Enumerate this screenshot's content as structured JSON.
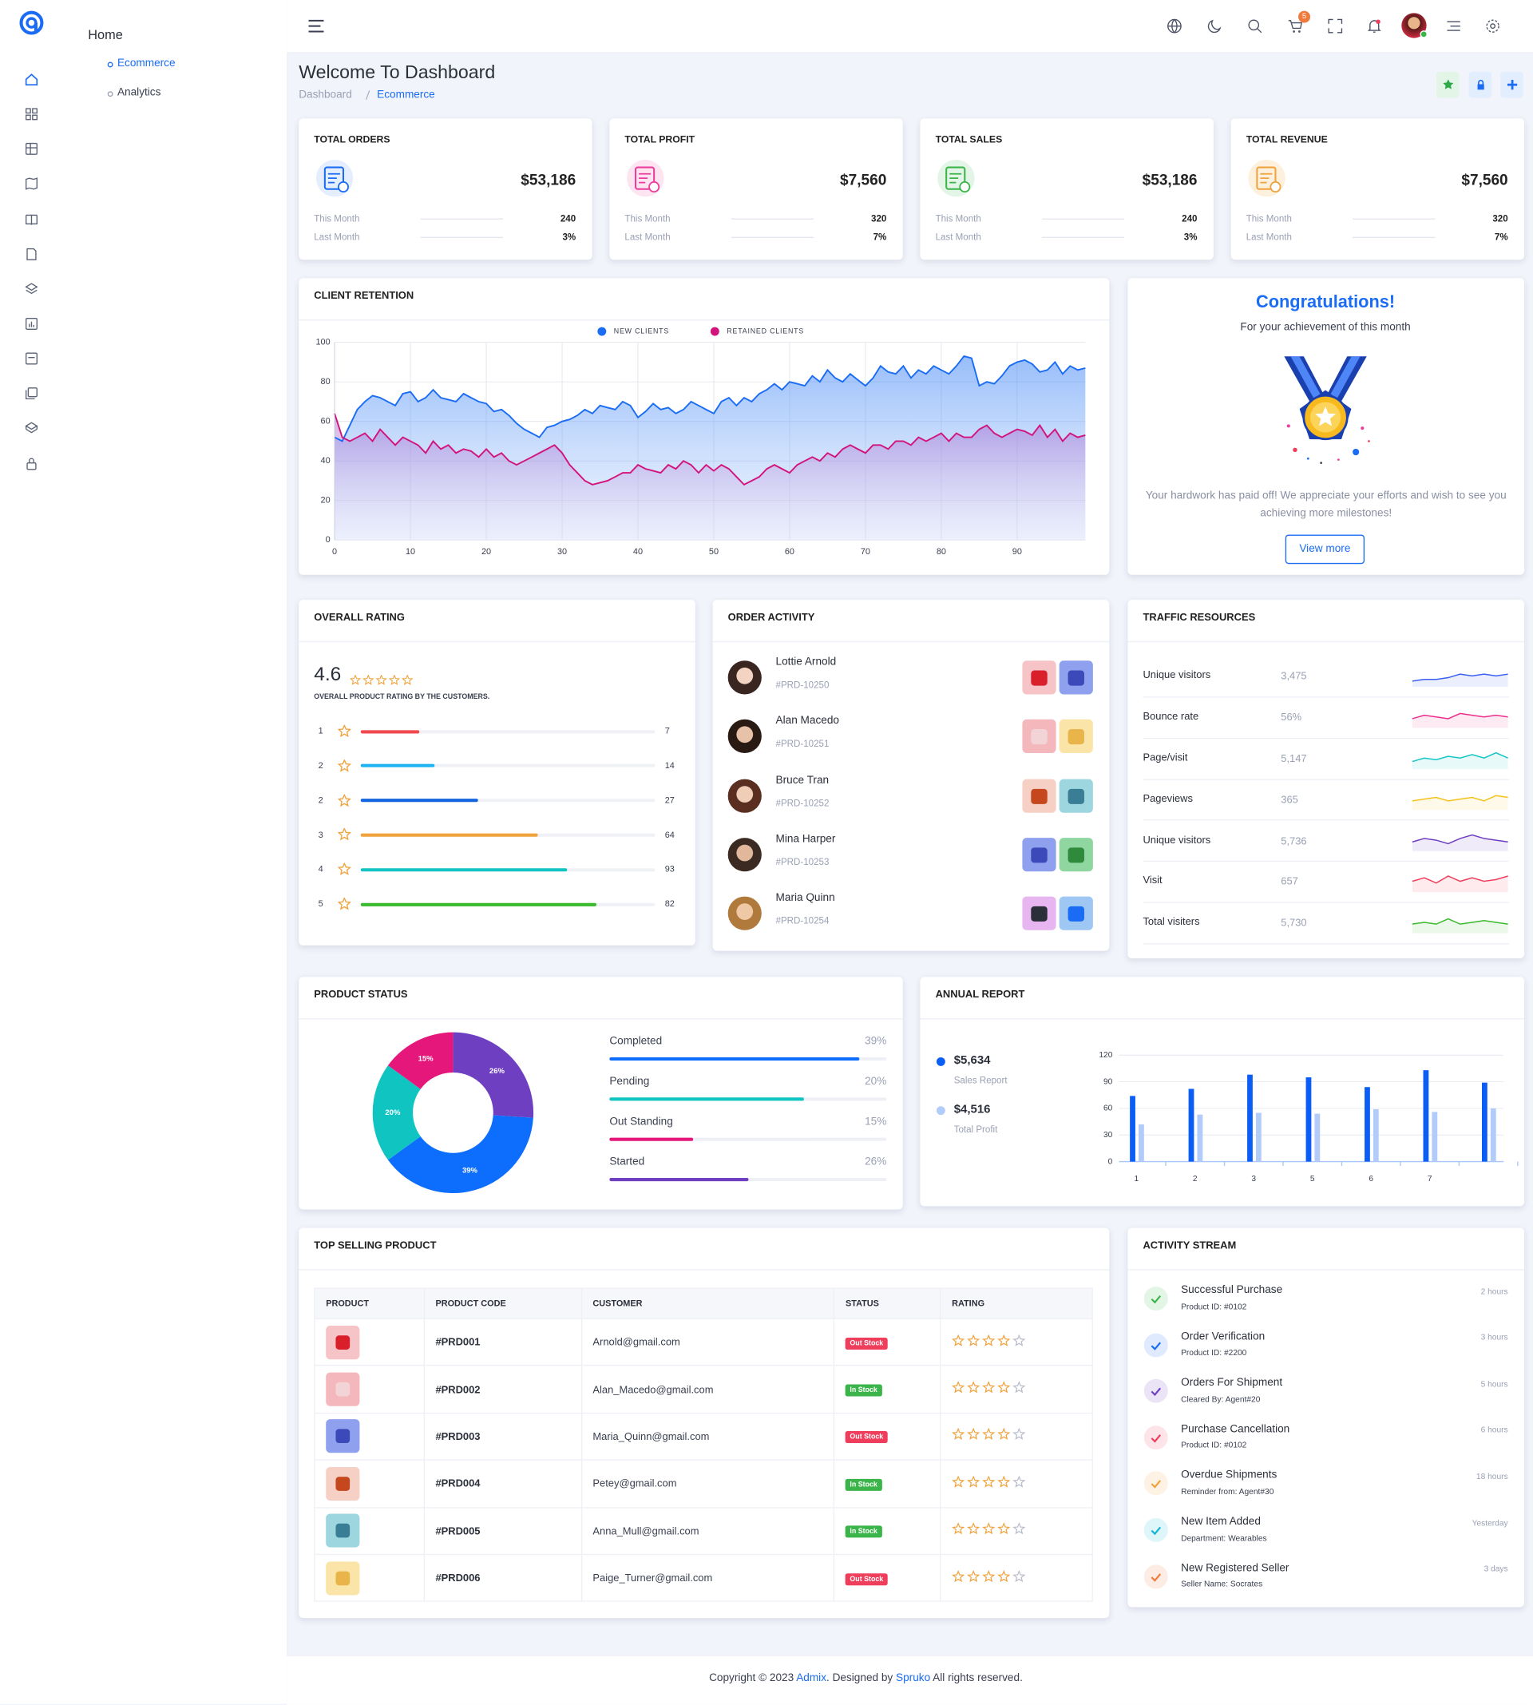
{
  "sidebar": {
    "section": "Home",
    "items": [
      "Ecommerce",
      "Analytics"
    ]
  },
  "header": {
    "cart_badge": 5
  },
  "page": {
    "title": "Welcome To Dashboard",
    "breadcrumb": [
      "Dashboard",
      "Ecommerce"
    ]
  },
  "stats": [
    {
      "title": "TOTAL ORDERS",
      "value": "$53,186",
      "rows": [
        {
          "label": "This Month",
          "value": "240"
        },
        {
          "label": "Last Month",
          "value": "3%"
        }
      ]
    },
    {
      "title": "TOTAL PROFIT",
      "value": "$7,560",
      "rows": [
        {
          "label": "This Month",
          "value": "320"
        },
        {
          "label": "Last Month",
          "value": "7%"
        }
      ]
    },
    {
      "title": "TOTAL SALES",
      "value": "$53,186",
      "rows": [
        {
          "label": "This Month",
          "value": "240"
        },
        {
          "label": "Last Month",
          "value": "3%"
        }
      ]
    },
    {
      "title": "TOTAL REVENUE",
      "value": "$7,560",
      "rows": [
        {
          "label": "This Month",
          "value": "320"
        },
        {
          "label": "Last Month",
          "value": "7%"
        }
      ]
    }
  ],
  "congrats": {
    "title": "Congratulations!",
    "subtitle": "For your achievement of this month",
    "text": "Your hardwork has paid off! We appreciate your efforts and wish to see you achieving more milestones!",
    "button": "View more"
  },
  "rating": {
    "title": "OVERALL RATING",
    "score": "4.6",
    "caption": "OVERALL PRODUCT RATING BY THE CUSTOMERS.",
    "rows": [
      {
        "label": "1",
        "count": 7,
        "progress": 20,
        "color": "#f0484c"
      },
      {
        "label": "2",
        "count": 14,
        "progress": 25,
        "color": "#1bb4f0"
      },
      {
        "label": "2",
        "count": 27,
        "progress": 40,
        "color": "#1565e0"
      },
      {
        "label": "3",
        "count": 64,
        "progress": 60,
        "color": "#f0a23c"
      },
      {
        "label": "4",
        "count": 93,
        "progress": 70,
        "color": "#12c3c3"
      },
      {
        "label": "5",
        "count": 82,
        "progress": 80,
        "color": "#3bba2d"
      }
    ]
  },
  "orders": {
    "title": "ORDER ACTIVITY",
    "items": [
      {
        "name": "Lottie Arnold",
        "code": "#PRD-10250"
      },
      {
        "name": "Alan Macedo",
        "code": "#PRD-10251"
      },
      {
        "name": "Bruce Tran",
        "code": "#PRD-10252"
      },
      {
        "name": "Mina Harper",
        "code": "#PRD-10253"
      },
      {
        "name": "Maria Quinn",
        "code": "#PRD-10254"
      }
    ]
  },
  "traffic": {
    "title": "TRAFFIC RESOURCES",
    "rows": [
      {
        "label": "Unique visitors",
        "value": "3,475",
        "color": "#3a5ff0",
        "spark": [
          2,
          3,
          3,
          4,
          6,
          5,
          6,
          5,
          6
        ]
      },
      {
        "label": "Bounce rate",
        "value": "56%",
        "color": "#ec2e8c",
        "spark": [
          4,
          6,
          5,
          4,
          7,
          6,
          5,
          6,
          5
        ]
      },
      {
        "label": "Page/visit",
        "value": "5,147",
        "color": "#12c6c6",
        "spark": [
          3,
          5,
          4,
          6,
          5,
          7,
          5,
          8,
          5
        ]
      },
      {
        "label": "Pageviews",
        "value": "365",
        "color": "#f5c21c",
        "spark": [
          4,
          5,
          6,
          4,
          5,
          6,
          4,
          7,
          6
        ]
      },
      {
        "label": "Unique visitors",
        "value": "5,736",
        "color": "#6f3fc2",
        "spark": [
          4,
          6,
          5,
          3,
          6,
          8,
          6,
          5,
          4
        ]
      },
      {
        "label": "Visit",
        "value": "657",
        "color": "#ef3e5c",
        "spark": [
          5,
          7,
          4,
          8,
          5,
          7,
          5,
          6,
          8
        ]
      },
      {
        "label": "Total visiters",
        "value": "5,730",
        "color": "#3bba2d",
        "spark": [
          4,
          5,
          4,
          7,
          4,
          5,
          6,
          5,
          4
        ]
      }
    ]
  },
  "top_selling": {
    "title": "TOP SELLING PRODUCT",
    "headers": [
      "PRODUCT",
      "PRODUCT CODE",
      "CUSTOMER",
      "STATUS",
      "RATING"
    ],
    "rows": [
      {
        "code": "#PRD001",
        "customer": "Arnold@gmail.com",
        "status": "Out Stock",
        "rating": 4
      },
      {
        "code": "#PRD002",
        "customer": "Alan_Macedo@gmail.com",
        "status": "In Stock",
        "rating": 4
      },
      {
        "code": "#PRD003",
        "customer": "Maria_Quinn@gmail.com",
        "status": "Out Stock",
        "rating": 4
      },
      {
        "code": "#PRD004",
        "customer": "Petey@gmail.com",
        "status": "In Stock",
        "rating": 4
      },
      {
        "code": "#PRD005",
        "customer": "Anna_Mull@gmail.com",
        "status": "In Stock",
        "rating": 4
      },
      {
        "code": "#PRD006",
        "customer": "Paige_Turner@gmail.com",
        "status": "Out Stock",
        "rating": 4
      }
    ]
  },
  "activity": {
    "title": "ACTIVITY STREAM",
    "items": [
      {
        "title": "Successful Purchase",
        "sub": "Product ID: #0102",
        "time": "2 hours",
        "color": "#3bb54a"
      },
      {
        "title": "Order Verification",
        "sub": "Product ID: #2200",
        "time": "3 hours",
        "color": "#1a6cf5"
      },
      {
        "title": "Orders For Shipment",
        "sub": "Cleared By: Agent#20",
        "time": "5 hours",
        "color": "#6f3fc2"
      },
      {
        "title": "Purchase Cancellation",
        "sub": "Product ID: #0102",
        "time": "6 hours",
        "color": "#ef3e5c"
      },
      {
        "title": "Overdue Shipments",
        "sub": "Reminder from: Agent#30",
        "time": "18 hours",
        "color": "#f0a23c"
      },
      {
        "title": "New Item Added",
        "sub": "Department: Wearables",
        "time": "Yesterday",
        "color": "#12b5d6"
      },
      {
        "title": "New Registered Seller",
        "sub": "Seller Name: Socrates",
        "time": "3 days",
        "color": "#f07a3c"
      }
    ]
  },
  "footer": {
    "parts": [
      "Copyright © 2023 ",
      "Admix",
      ". Designed by ",
      "Spruko",
      " All rights reserved."
    ]
  },
  "chart_data": [
    {
      "type": "area",
      "title": "CLIENT RETENTION",
      "x": [
        0,
        1,
        2,
        3,
        4,
        5,
        6,
        7,
        8,
        9,
        10,
        11,
        12,
        13,
        14,
        15,
        16,
        17,
        18,
        19,
        20,
        21,
        22,
        23,
        24,
        25,
        26,
        27,
        28,
        29,
        30,
        31,
        32,
        33,
        34,
        35,
        36,
        37,
        38,
        39,
        40,
        41,
        42,
        43,
        44,
        45,
        46,
        47,
        48,
        49,
        50,
        51,
        52,
        53,
        54,
        55,
        56,
        57,
        58,
        59,
        60,
        61,
        62,
        63,
        64,
        65,
        66,
        67,
        68,
        69,
        70,
        71,
        72,
        73,
        74,
        75,
        76,
        77,
        78,
        79,
        80,
        81,
        82,
        83,
        84,
        85,
        86,
        87,
        88,
        89,
        90,
        91,
        92,
        93,
        94,
        95,
        96,
        97,
        98,
        99
      ],
      "series": [
        {
          "name": "NEW CLIENTS",
          "color": "#1a6cf5",
          "values": [
            52,
            50,
            58,
            66,
            70,
            73,
            72,
            70,
            68,
            74,
            75,
            70,
            72,
            76,
            72,
            71,
            70,
            74,
            72,
            70,
            69,
            65,
            66,
            63,
            59,
            56,
            54,
            52,
            57,
            58,
            60,
            61,
            63,
            66,
            64,
            68,
            67,
            66,
            70,
            68,
            62,
            65,
            69,
            66,
            67,
            64,
            66,
            70,
            68,
            66,
            64,
            70,
            72,
            68,
            72,
            70,
            74,
            76,
            79,
            76,
            80,
            79,
            78,
            83,
            80,
            86,
            82,
            80,
            84,
            81,
            78,
            82,
            88,
            85,
            84,
            88,
            82,
            86,
            84,
            88,
            86,
            84,
            88,
            93,
            92,
            78,
            80,
            79,
            83,
            88,
            90,
            91,
            89,
            85,
            86,
            90,
            84,
            88,
            86,
            87
          ]
        },
        {
          "name": "RETAINED CLIENTS",
          "color": "#d3137c",
          "values": [
            64,
            52,
            50,
            52,
            54,
            50,
            56,
            52,
            48,
            52,
            50,
            48,
            44,
            50,
            46,
            48,
            44,
            46,
            45,
            42,
            46,
            42,
            44,
            40,
            38,
            40,
            42,
            44,
            46,
            48,
            44,
            38,
            34,
            30,
            28,
            29,
            30,
            32,
            34,
            34,
            38,
            36,
            35,
            34,
            38,
            36,
            40,
            38,
            34,
            38,
            35,
            38,
            36,
            32,
            28,
            30,
            32,
            36,
            38,
            36,
            34,
            38,
            40,
            42,
            40,
            44,
            42,
            46,
            48,
            46,
            44,
            48,
            48,
            46,
            50,
            50,
            48,
            52,
            50,
            52,
            54,
            50,
            54,
            52,
            52,
            56,
            58,
            54,
            52,
            54,
            56,
            55,
            53,
            58,
            52,
            56,
            50,
            54,
            52,
            53
          ]
        }
      ],
      "xlim": [
        0,
        99
      ],
      "ylim": [
        0,
        100
      ],
      "xticks": [
        0,
        10,
        20,
        30,
        40,
        50,
        60,
        70,
        80,
        90
      ],
      "yticks": [
        0,
        20,
        40,
        60,
        80,
        100
      ],
      "grid": true,
      "legend": "top"
    },
    {
      "type": "donut",
      "title": "PRODUCT STATUS",
      "categories": [
        "Completed",
        "Pending",
        "Out Standing",
        "Started"
      ],
      "values": [
        39,
        20,
        15,
        26
      ],
      "value_labels": [
        "39%",
        "20%",
        "15%",
        "26%"
      ],
      "colors": [
        "#0d6efd",
        "#10c5c1",
        "#e5177b",
        "#6f3fc2"
      ],
      "progress": [
        90,
        70,
        30,
        50
      ]
    },
    {
      "type": "bar",
      "title": "ANNUAL REPORT",
      "categories": [
        "1",
        "2",
        "3",
        "5",
        "6",
        "7",
        null
      ],
      "series": [
        {
          "name": "Sales Report",
          "total": "$5,634",
          "color": "#0b5ef5",
          "values": [
            74,
            82,
            98,
            95,
            84,
            103,
            89
          ]
        },
        {
          "name": "Total Profit",
          "total": "$4,516",
          "color": "#b1cbfb",
          "values": [
            42,
            53,
            55,
            54,
            59,
            56,
            60
          ]
        }
      ],
      "ylim": [
        0,
        120
      ],
      "yticks": [
        0,
        30,
        60,
        90,
        120
      ],
      "grid": true,
      "legend": "left"
    }
  ]
}
